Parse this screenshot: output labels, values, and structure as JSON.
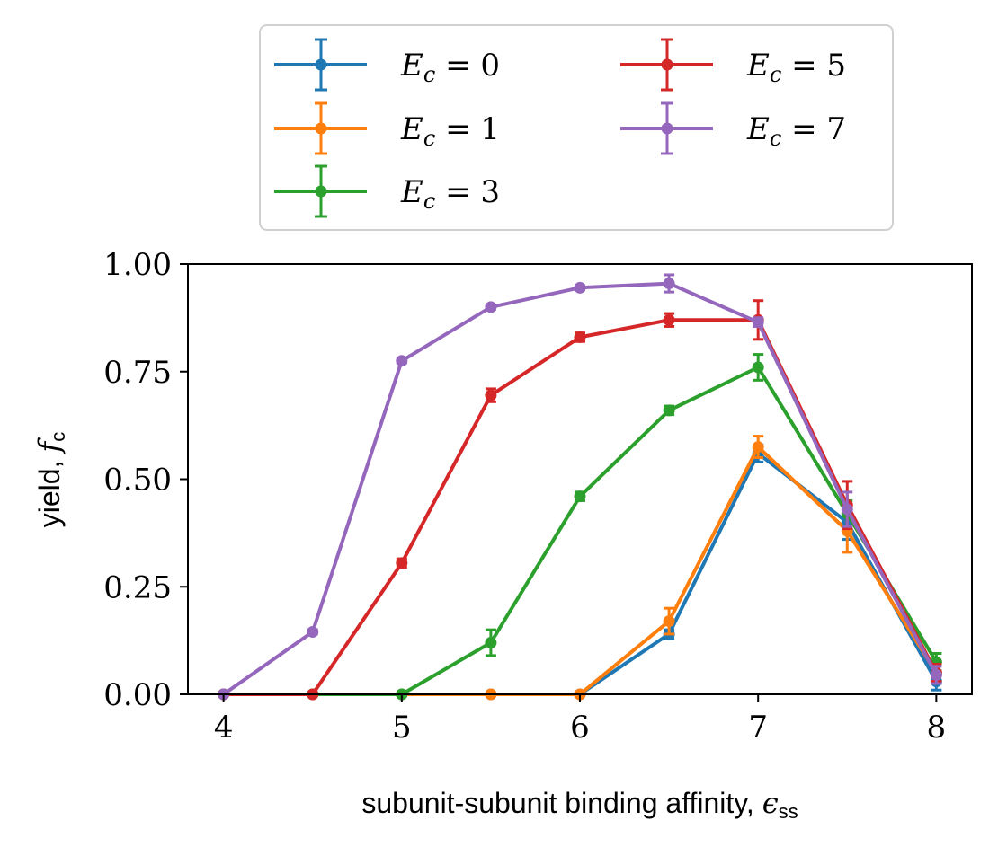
{
  "chart_data": {
    "type": "line",
    "xlabel": "subunit-subunit binding affinity, ϵss",
    "ylabel": "yield, fc",
    "xlim": [
      3.8,
      8.2
    ],
    "ylim": [
      0,
      1
    ],
    "xticks": [
      4,
      5,
      6,
      7,
      8
    ],
    "yticks": [
      0.0,
      0.25,
      0.5,
      0.75,
      1.0
    ],
    "xtick_labels": [
      "4",
      "5",
      "6",
      "7",
      "8"
    ],
    "ytick_labels": [
      "0.00",
      "0.25",
      "0.50",
      "0.75",
      "1.00"
    ],
    "grid": false,
    "legend_position": "top, above plot (2 columns)",
    "x": [
      4.0,
      4.5,
      5.0,
      5.5,
      6.0,
      6.5,
      7.0,
      7.5,
      8.0
    ],
    "series": [
      {
        "name": "E_c = 0",
        "color": "#1f77b4",
        "values": [
          0,
          0,
          0,
          0,
          0,
          0.14,
          0.56,
          0.4,
          0.03
        ],
        "errors": [
          0,
          0,
          0,
          0,
          0,
          0.01,
          0.02,
          0.04,
          0.02
        ]
      },
      {
        "name": "E_c = 1",
        "color": "#ff7f0e",
        "values": [
          0,
          0,
          0,
          0,
          0,
          0.17,
          0.575,
          0.38,
          0.05
        ],
        "errors": [
          0,
          0,
          0,
          0,
          0,
          0.03,
          0.025,
          0.05,
          0.02
        ]
      },
      {
        "name": "E_c = 3",
        "color": "#2ca02c",
        "values": [
          0,
          0,
          0,
          0.12,
          0.46,
          0.66,
          0.76,
          0.42,
          0.075
        ],
        "errors": [
          0,
          0,
          0,
          0.03,
          0.01,
          0.01,
          0.03,
          0.03,
          0.02
        ]
      },
      {
        "name": "E_c = 5",
        "color": "#d62728",
        "values": [
          0,
          0,
          0.305,
          0.695,
          0.83,
          0.87,
          0.87,
          0.44,
          0.05
        ],
        "errors": [
          0,
          0,
          0.01,
          0.015,
          0.01,
          0.015,
          0.045,
          0.055,
          0.02
        ]
      },
      {
        "name": "E_c = 7",
        "color": "#9467bd",
        "values": [
          0,
          0.145,
          0.775,
          0.9,
          0.945,
          0.955,
          0.865,
          0.43,
          0.045
        ],
        "errors": [
          0,
          0.005,
          0.005,
          0.005,
          0.005,
          0.02,
          0.01,
          0.04,
          0.02
        ]
      }
    ]
  },
  "legend": {
    "entries": [
      {
        "var": "E",
        "sub": "c",
        "eq": " = 0",
        "color": "#1f77b4"
      },
      {
        "var": "E",
        "sub": "c",
        "eq": " = 1",
        "color": "#ff7f0e"
      },
      {
        "var": "E",
        "sub": "c",
        "eq": " = 3",
        "color": "#2ca02c"
      },
      {
        "var": "E",
        "sub": "c",
        "eq": " = 5",
        "color": "#d62728"
      },
      {
        "var": "E",
        "sub": "c",
        "eq": " = 7",
        "color": "#9467bd"
      }
    ]
  },
  "labels": {
    "x_main": "subunit-subunit binding affinity, ",
    "x_sym": "ϵ",
    "x_sub": "ss",
    "y_main": "yield, ",
    "y_sym": "f",
    "y_sub": "c"
  }
}
